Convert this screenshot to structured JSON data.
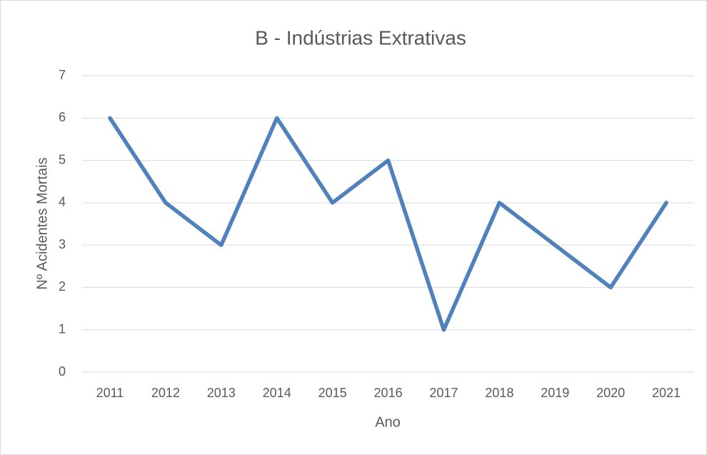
{
  "chart_data": {
    "type": "line",
    "title": "B - Indústrias Extrativas",
    "x_label": "Ano",
    "y_label": "Nº Acidentes Mortais",
    "categories": [
      "2011",
      "2012",
      "2013",
      "2014",
      "2015",
      "2016",
      "2017",
      "2018",
      "2019",
      "2020",
      "2021"
    ],
    "series": [
      {
        "name": "B - Indústrias Extrativas",
        "color": "#4f81bd",
        "values": [
          6,
          4,
          3,
          6,
          4,
          5,
          1,
          4,
          3,
          2,
          4
        ]
      }
    ],
    "ylim": [
      0,
      7
    ],
    "yticks": [
      0,
      1,
      2,
      3,
      4,
      5,
      6,
      7
    ],
    "grid": true
  }
}
